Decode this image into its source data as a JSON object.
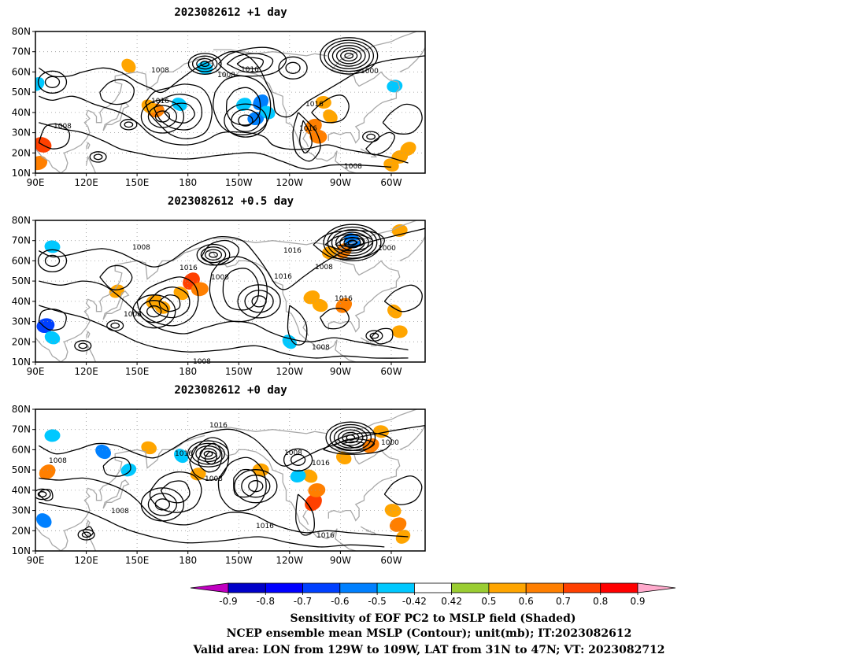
{
  "panels": [
    {
      "title": "2023082612  +1 day",
      "isobar_labels": [
        "1008",
        "1008",
        "1016",
        "1016",
        "1008",
        "1016",
        "1016",
        "1000",
        "1008"
      ],
      "lows": [
        {
          "lon": -85,
          "lat": 68,
          "rings": 7
        },
        {
          "lon": -170,
          "lat": 64,
          "rings": 4
        },
        {
          "lon": 145,
          "lat": 34,
          "rings": 2
        },
        {
          "lon": 127,
          "lat": 18,
          "rings": 2
        },
        {
          "lon": -72,
          "lat": 28,
          "rings": 2
        }
      ],
      "highs": [
        {
          "lon": 165,
          "lat": 38,
          "rings": 3
        },
        {
          "lon": -146,
          "lat": 36,
          "rings": 3
        },
        {
          "lon": -118,
          "lat": 62,
          "rings": 2
        },
        {
          "lon": 100,
          "lat": 55,
          "rings": 2
        }
      ],
      "shade": [
        {
          "lon": -137,
          "lat": 45,
          "v": -0.6
        },
        {
          "lon": -140,
          "lat": 37,
          "v": -0.55
        },
        {
          "lon": -133,
          "lat": 40,
          "v": -0.5
        },
        {
          "lon": -147,
          "lat": 44,
          "v": -0.5
        },
        {
          "lon": -170,
          "lat": 62,
          "v": -0.5
        },
        {
          "lon": 91,
          "lat": 54,
          "v": -0.5
        },
        {
          "lon": 161,
          "lat": 41,
          "v": 0.6
        },
        {
          "lon": 157,
          "lat": 43,
          "v": 0.5
        },
        {
          "lon": 92,
          "lat": 15,
          "v": 0.6
        },
        {
          "lon": 94,
          "lat": 24,
          "v": 0.7
        },
        {
          "lon": -106,
          "lat": 33,
          "v": 0.65
        },
        {
          "lon": -103,
          "lat": 28,
          "v": 0.6
        },
        {
          "lon": -96,
          "lat": 38,
          "v": 0.5
        },
        {
          "lon": -55,
          "lat": 18,
          "v": 0.55
        },
        {
          "lon": -60,
          "lat": 14,
          "v": 0.5
        },
        {
          "lon": -50,
          "lat": 22,
          "v": 0.55
        },
        {
          "lon": -100,
          "lat": 45,
          "v": 0.5
        },
        {
          "lon": 145,
          "lat": 63,
          "v": 0.5
        },
        {
          "lon": -58,
          "lat": 53,
          "v": -0.5
        },
        {
          "lon": -185,
          "lat": 44,
          "v": -0.5
        }
      ]
    },
    {
      "title": "2023082612  +0.5 day",
      "isobar_labels": [
        "1008",
        "1008",
        "1016",
        "1008",
        "1016",
        "1016",
        "1008",
        "1000",
        "1016",
        "1008",
        "1008"
      ],
      "lows": [
        {
          "lon": -83,
          "lat": 69,
          "rings": 7
        },
        {
          "lon": -165,
          "lat": 63,
          "rings": 4
        },
        {
          "lon": 137,
          "lat": 28,
          "rings": 2
        },
        {
          "lon": 118,
          "lat": 18,
          "rings": 2
        },
        {
          "lon": -70,
          "lat": 23,
          "rings": 2
        }
      ],
      "highs": [
        {
          "lon": 160,
          "lat": 35,
          "rings": 3
        },
        {
          "lon": -138,
          "lat": 40,
          "rings": 3
        },
        {
          "lon": 100,
          "lat": 60,
          "rings": 2
        }
      ],
      "shade": [
        {
          "lon": -178,
          "lat": 50,
          "v": 0.7
        },
        {
          "lon": -173,
          "lat": 46,
          "v": 0.6
        },
        {
          "lon": -184,
          "lat": 44,
          "v": 0.5
        },
        {
          "lon": 160,
          "lat": 40,
          "v": 0.55
        },
        {
          "lon": 165,
          "lat": 37,
          "v": 0.5
        },
        {
          "lon": -88,
          "lat": 65,
          "v": 0.6
        },
        {
          "lon": -96,
          "lat": 64,
          "v": 0.55
        },
        {
          "lon": -83,
          "lat": 70,
          "v": -0.6
        },
        {
          "lon": -107,
          "lat": 42,
          "v": 0.55
        },
        {
          "lon": -102,
          "lat": 38,
          "v": 0.5
        },
        {
          "lon": -88,
          "lat": 38,
          "v": 0.6
        },
        {
          "lon": -55,
          "lat": 25,
          "v": 0.5
        },
        {
          "lon": -58,
          "lat": 35,
          "v": 0.5
        },
        {
          "lon": 96,
          "lat": 28,
          "v": -0.65
        },
        {
          "lon": 100,
          "lat": 22,
          "v": -0.5
        },
        {
          "lon": 138,
          "lat": 45,
          "v": 0.5
        },
        {
          "lon": 100,
          "lat": 67,
          "v": -0.5
        },
        {
          "lon": -120,
          "lat": 20,
          "v": -0.5
        },
        {
          "lon": -55,
          "lat": 75,
          "v": 0.5
        }
      ]
    },
    {
      "title": "2023082612  +0 day",
      "isobar_labels": [
        "1016",
        "1016",
        "1008",
        "1008",
        "1008",
        "1016",
        "1000",
        "1008",
        "1016",
        "1016"
      ],
      "lows": [
        {
          "lon": -84,
          "lat": 66,
          "rings": 6
        },
        {
          "lon": -168,
          "lat": 58,
          "rings": 5
        },
        {
          "lon": 120,
          "lat": 18,
          "rings": 2
        },
        {
          "lon": 94,
          "lat": 38,
          "rings": 2
        }
      ],
      "highs": [
        {
          "lon": 165,
          "lat": 33,
          "rings": 3
        },
        {
          "lon": -140,
          "lat": 42,
          "rings": 3
        },
        {
          "lon": -115,
          "lat": 55,
          "rings": 2
        }
      ],
      "shade": [
        {
          "lon": -106,
          "lat": 34,
          "v": 0.7
        },
        {
          "lon": -104,
          "lat": 40,
          "v": 0.6
        },
        {
          "lon": -108,
          "lat": 47,
          "v": 0.5
        },
        {
          "lon": -56,
          "lat": 23,
          "v": 0.6
        },
        {
          "lon": -59,
          "lat": 30,
          "v": 0.55
        },
        {
          "lon": -53,
          "lat": 17,
          "v": 0.5
        },
        {
          "lon": 100,
          "lat": 67,
          "v": -0.5
        },
        {
          "lon": 130,
          "lat": 59,
          "v": -0.55
        },
        {
          "lon": 145,
          "lat": 50,
          "v": -0.5
        },
        {
          "lon": 157,
          "lat": 61,
          "v": 0.5
        },
        {
          "lon": 97,
          "lat": 49,
          "v": 0.6
        },
        {
          "lon": -137,
          "lat": 50,
          "v": 0.55
        },
        {
          "lon": 95,
          "lat": 25,
          "v": -0.55
        },
        {
          "lon": -115,
          "lat": 47,
          "v": -0.5
        },
        {
          "lon": -88,
          "lat": 56,
          "v": 0.5
        },
        {
          "lon": -72,
          "lat": 62,
          "v": 0.6
        },
        {
          "lon": -66,
          "lat": 69,
          "v": 0.5
        },
        {
          "lon": 176,
          "lat": 57,
          "v": -0.5
        },
        {
          "lon": -174,
          "lat": 48,
          "v": 0.5
        }
      ]
    }
  ],
  "axes": {
    "lon_ticks": [
      "90E",
      "120E",
      "150E",
      "180",
      "150W",
      "120W",
      "90W",
      "60W"
    ],
    "lat_ticks": [
      "80N",
      "70N",
      "60N",
      "50N",
      "40N",
      "30N",
      "20N",
      "10N"
    ],
    "lon_range": [
      90,
      320
    ],
    "lat_range": [
      10,
      80
    ]
  },
  "colorbar": {
    "tick_labels": [
      "-0.9",
      "-0.8",
      "-0.7",
      "-0.6",
      "-0.5",
      "-0.42",
      "0.42",
      "0.5",
      "0.6",
      "0.7",
      "0.8",
      "0.9"
    ],
    "levels": [
      -0.9,
      -0.8,
      -0.7,
      -0.6,
      -0.5,
      -0.42,
      0.42,
      0.5,
      0.6,
      0.7,
      0.8,
      0.9
    ],
    "colors": [
      "#c000c0",
      "#0000c8",
      "#0000ff",
      "#0040ff",
      "#0080ff",
      "#00c8ff",
      "#ffffff",
      "#9acd32",
      "#ffa500",
      "#ff7f00",
      "#ff4000",
      "#ff0000",
      "#ffaacc"
    ]
  },
  "caption": {
    "line1": "Sensitivity of EOF PC2 to MSLP field (Shaded)",
    "line2": "NCEP ensemble mean MSLP (Contour); unit(mb); IT:2023082612",
    "line3": "Valid area: LON from 129W to 109W, LAT from 31N to 47N; VT: 2023082712"
  }
}
